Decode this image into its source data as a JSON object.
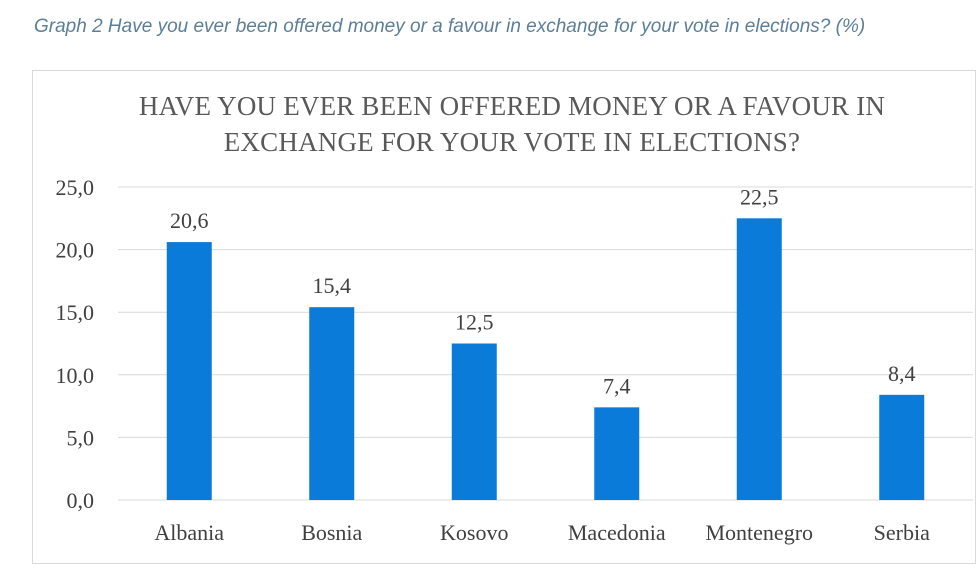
{
  "caption": "Graph 2 Have you ever been offered money or a favour in exchange for your vote in elections? (%)",
  "chart_data": {
    "type": "bar",
    "title_line1": "HAVE YOU EVER BEEN OFFERED MONEY OR A FAVOUR IN",
    "title_line2": "EXCHANGE FOR YOUR VOTE IN ELECTIONS?",
    "categories": [
      "Albania",
      "Bosnia",
      "Kosovo",
      "Macedonia",
      "Montenegro",
      "Serbia"
    ],
    "values": [
      20.6,
      15.4,
      12.5,
      7.4,
      22.5,
      8.4
    ],
    "data_labels": [
      "20,6",
      "15,4",
      "12,5",
      "7,4",
      "22,5",
      "8,4"
    ],
    "yticks": [
      "0,0",
      "5,0",
      "10,0",
      "15,0",
      "20,0",
      "25,0"
    ],
    "ylim": [
      0,
      25
    ],
    "grid": true,
    "bar_color": "#0a7bd9",
    "grid_color": "#d9d9d9"
  }
}
